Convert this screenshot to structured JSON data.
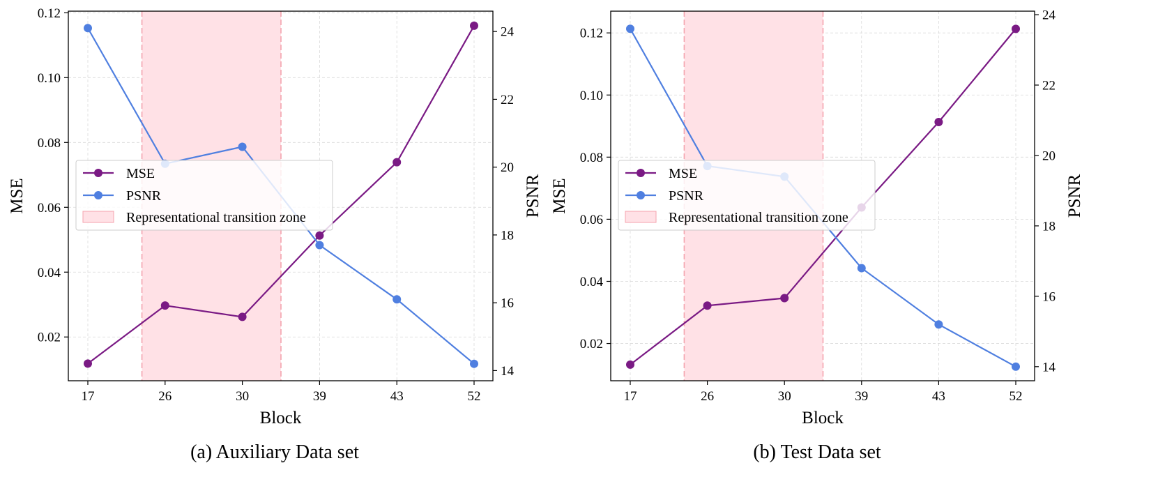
{
  "colors": {
    "mse": "#7a1a84",
    "psnr": "#4f7fe0",
    "zone_fill": "#ffe1e6",
    "zone_edge": "#f4a3ae",
    "grid": "#d9d9d9",
    "legend_border": "#cccccc"
  },
  "chart_data": [
    {
      "type": "line",
      "caption": "(a) Auxiliary Data set",
      "xlabel": "Block",
      "ylabel_left": "MSE",
      "ylabel_right": "PSNR",
      "categories": [
        "17",
        "26",
        "30",
        "39",
        "43",
        "52"
      ],
      "ylim_left": [
        0.0065,
        0.1205
      ],
      "yticks_left": [
        "0.02",
        "0.04",
        "0.06",
        "0.08",
        "0.10",
        "0.12"
      ],
      "ylim_right": [
        13.7,
        24.6
      ],
      "yticks_right": [
        "14",
        "16",
        "18",
        "20",
        "22",
        "24"
      ],
      "grid": true,
      "legend_position": "center-left",
      "series": [
        {
          "name": "MSE",
          "axis": "left",
          "values": [
            0.0118,
            0.0297,
            0.0262,
            0.0513,
            0.0739,
            0.116
          ]
        },
        {
          "name": "PSNR",
          "axis": "right",
          "values": [
            24.1,
            20.1,
            20.6,
            17.7,
            16.1,
            14.2
          ]
        }
      ],
      "shaded_region": {
        "label": "Representational transition zone",
        "x_start": 0.7,
        "x_end": 2.5
      }
    },
    {
      "type": "line",
      "caption": "(b) Test Data set",
      "xlabel": "Block",
      "ylabel_left": "MSE",
      "ylabel_right": "PSNR",
      "categories": [
        "17",
        "26",
        "30",
        "39",
        "43",
        "52"
      ],
      "ylim_left": [
        0.008,
        0.127
      ],
      "yticks_left": [
        "0.02",
        "0.04",
        "0.06",
        "0.08",
        "0.10",
        "0.12"
      ],
      "ylim_right": [
        13.6,
        24.1
      ],
      "yticks_right": [
        "14",
        "16",
        "18",
        "20",
        "22",
        "24"
      ],
      "grid": true,
      "legend_position": "center-left",
      "series": [
        {
          "name": "MSE",
          "axis": "left",
          "values": [
            0.0132,
            0.0322,
            0.0346,
            0.0638,
            0.0913,
            0.1213
          ]
        },
        {
          "name": "PSNR",
          "axis": "right",
          "values": [
            23.6,
            19.7,
            19.4,
            16.8,
            15.2,
            14.0
          ]
        }
      ],
      "shaded_region": {
        "label": "Representational transition zone",
        "x_start": 0.7,
        "x_end": 2.5
      }
    }
  ]
}
